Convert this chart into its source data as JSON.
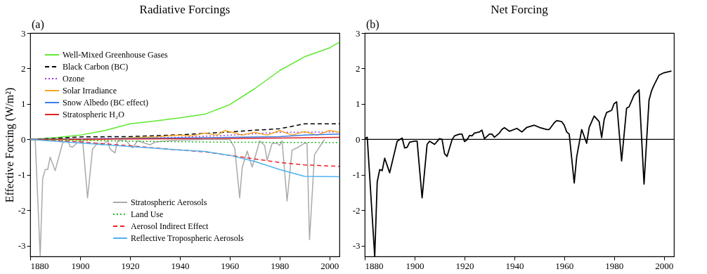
{
  "chart_data": [
    {
      "type": "line",
      "title": "Radiative Forcings",
      "ylabel": "Effective Forcing (W/m²)",
      "annotations": [
        "(a)"
      ],
      "xlim": [
        1880,
        2004
      ],
      "xticks": [
        1880,
        1900,
        1920,
        1940,
        1960,
        1980,
        2000
      ],
      "ylim": [
        -3.3,
        3
      ],
      "yticks": [
        -3,
        -2,
        -1,
        0,
        1,
        2,
        3
      ],
      "legend": "left",
      "series": [
        {
          "name": "Well-Mixed Greenhouse Gases",
          "color": "#5ee832",
          "line_style": "solid",
          "x": [
            1880,
            1890,
            1900,
            1910,
            1920,
            1930,
            1940,
            1950,
            1960,
            1970,
            1980,
            1990,
            2000,
            2004
          ],
          "values": [
            0,
            0.05,
            0.12,
            0.25,
            0.44,
            0.52,
            0.61,
            0.71,
            0.98,
            1.43,
            1.94,
            2.33,
            2.58,
            2.74
          ]
        },
        {
          "name": "Black Carbon (BC)",
          "color": "#000000",
          "line_style": "dashed",
          "x": [
            1880,
            1890,
            1900,
            1920,
            1940,
            1960,
            1970,
            1980,
            1990,
            2004
          ],
          "values": [
            0,
            0.03,
            0.07,
            0.08,
            0.13,
            0.21,
            0.26,
            0.3,
            0.44,
            0.44
          ]
        },
        {
          "name": "Ozone",
          "color": "#a33bf0",
          "line_style": "dotted",
          "x": [
            1880,
            1920,
            1940,
            1960,
            1980,
            2004
          ],
          "values": [
            0,
            0.03,
            0.06,
            0.12,
            0.2,
            0.21
          ]
        },
        {
          "name": "Solar Irradiance",
          "color": "#f5a623",
          "line_style": "solid",
          "x": [
            1880,
            1885,
            1890,
            1900,
            1910,
            1920,
            1930,
            1935,
            1940,
            1945,
            1950,
            1955,
            1958,
            1962,
            1965,
            1970,
            1975,
            1980,
            1985,
            1990,
            1995,
            2000,
            2004
          ],
          "values": [
            0,
            -0.02,
            0,
            -0.02,
            0,
            0.05,
            0.07,
            0.1,
            0.12,
            0.1,
            0.18,
            0.12,
            0.25,
            0.18,
            0.12,
            0.2,
            0.12,
            0.25,
            0.12,
            0.22,
            0.12,
            0.25,
            0.2
          ]
        },
        {
          "name": "Snow Albedo (BC effect)",
          "color": "#3b7de8",
          "line_style": "solid",
          "x": [
            1880,
            1950,
            1960,
            1980,
            1990,
            2004
          ],
          "values": [
            0,
            0.05,
            0.06,
            0.08,
            0.12,
            0.15
          ]
        },
        {
          "name": "Stratospheric H₂O",
          "color": "#dd2222",
          "line_style": "solid",
          "x": [
            1880,
            1950,
            1980,
            2004
          ],
          "values": [
            0,
            0.02,
            0.04,
            0.06
          ]
        },
        {
          "name": "Stratospheric Aerosols",
          "color": "#aaaaaa",
          "line_style": "solid",
          "x": [
            1880,
            1882,
            1884,
            1885,
            1886,
            1887,
            1888,
            1890,
            1893,
            1895,
            1896,
            1897,
            1899,
            1901,
            1903,
            1905,
            1907,
            1909,
            1911,
            1912,
            1914,
            1915,
            1918,
            1921,
            1923,
            1928,
            1930,
            1933,
            1940,
            1950,
            1960,
            1962,
            1964,
            1965,
            1967,
            1969,
            1971,
            1972,
            1974,
            1975,
            1977,
            1979,
            1980,
            1981,
            1983,
            1985,
            1987,
            1990,
            1991,
            1992,
            1994,
            1997,
            1998
          ],
          "values": [
            0,
            0,
            -3.3,
            -1.1,
            -0.85,
            -0.85,
            -0.5,
            -0.88,
            -0.1,
            0,
            -0.2,
            -0.22,
            -0.08,
            0,
            -1.65,
            -0.27,
            -0.11,
            -0.16,
            -0.03,
            -0.27,
            -0.38,
            -0.04,
            0,
            -0.24,
            -0.04,
            -0.15,
            -0.08,
            -0.05,
            -0.02,
            0,
            0,
            -0.24,
            -1.65,
            -0.8,
            -0.33,
            -0.78,
            -0.3,
            -0.04,
            -0.17,
            -0.59,
            -0.11,
            -0.11,
            -0.17,
            -0.04,
            -1.74,
            -0.3,
            -0.24,
            -0.11,
            -0.11,
            -2.83,
            -0.43,
            -0.11,
            0
          ]
        },
        {
          "name": "Land Use",
          "color": "#22bb22",
          "line_style": "dotted",
          "x": [
            1880,
            1920,
            1960,
            2004
          ],
          "values": [
            0,
            -0.05,
            -0.08,
            -0.09
          ]
        },
        {
          "name": "Aerosol Indirect Effect",
          "color": "#ee2222",
          "line_style": "dashed",
          "x": [
            1880,
            1900,
            1920,
            1940,
            1950,
            1960,
            1970,
            1980,
            1990,
            2004
          ],
          "values": [
            0,
            -0.07,
            -0.18,
            -0.3,
            -0.35,
            -0.45,
            -0.55,
            -0.65,
            -0.72,
            -0.76
          ]
        },
        {
          "name": "Reflective Tropospheric Aerosols",
          "color": "#4fb3f0",
          "line_style": "solid",
          "x": [
            1880,
            1900,
            1920,
            1940,
            1950,
            1960,
            1970,
            1980,
            1990,
            2004
          ],
          "values": [
            0,
            -0.1,
            -0.2,
            -0.3,
            -0.34,
            -0.45,
            -0.62,
            -0.85,
            -1.04,
            -1.05
          ]
        }
      ]
    },
    {
      "type": "line",
      "title": "Net Forcing",
      "annotations": [
        "(b)"
      ],
      "xlim": [
        1880,
        2004
      ],
      "xticks": [
        1880,
        1900,
        1920,
        1940,
        1960,
        1980,
        2000
      ],
      "ylim": [
        -3.3,
        3
      ],
      "yticks": [
        -3,
        -2,
        -1,
        0,
        1,
        2,
        3
      ],
      "ref_lines": [
        {
          "axis": "y",
          "value": 0,
          "color": "#000000"
        }
      ],
      "series": [
        {
          "color": "#000000",
          "x": [
            1880,
            1881,
            1884,
            1885,
            1886,
            1887,
            1888,
            1890,
            1893,
            1895,
            1896,
            1897,
            1898,
            1900,
            1901,
            1903,
            1905,
            1906,
            1908,
            1910,
            1911,
            1912,
            1913,
            1915,
            1916,
            1918,
            1919,
            1920,
            1921,
            1922,
            1923,
            1924,
            1926,
            1927,
            1928,
            1930,
            1931,
            1932,
            1934,
            1935,
            1936,
            1938,
            1941,
            1943,
            1945,
            1948,
            1950,
            1953,
            1954,
            1956,
            1957,
            1959,
            1960,
            1961,
            1962,
            1964,
            1965,
            1967,
            1969,
            1970,
            1972,
            1974,
            1975,
            1976,
            1977,
            1979,
            1980,
            1981,
            1983,
            1985,
            1986,
            1988,
            1990,
            1992,
            1994,
            1995,
            1996,
            1998,
            2000,
            2003
          ],
          "values": [
            0.02,
            0.06,
            -3.3,
            -1.2,
            -0.85,
            -0.88,
            -0.53,
            -0.94,
            -0.05,
            0.04,
            -0.24,
            -0.22,
            -0.08,
            -0.05,
            -0.05,
            -1.65,
            -0.14,
            -0.05,
            -0.14,
            0.02,
            0,
            -0.4,
            -0.48,
            -0.01,
            0.1,
            0.15,
            0.15,
            -0.06,
            -0.01,
            0.11,
            0.1,
            0.18,
            0.21,
            0.26,
            0.02,
            0.15,
            0.15,
            0.06,
            0.18,
            0.28,
            0.33,
            0.23,
            0.31,
            0.21,
            0.34,
            0.4,
            0.34,
            0.28,
            0.28,
            0.47,
            0.53,
            0.5,
            0.4,
            0.21,
            0.15,
            -1.23,
            -0.49,
            0.28,
            -0.11,
            0.34,
            0.66,
            0.5,
            0.05,
            0.56,
            0.76,
            0.82,
            1.01,
            1.06,
            -0.61,
            0.88,
            0.92,
            1.25,
            1.4,
            -1.26,
            1.11,
            1.37,
            1.53,
            1.81,
            1.88,
            1.93
          ]
        }
      ]
    }
  ]
}
